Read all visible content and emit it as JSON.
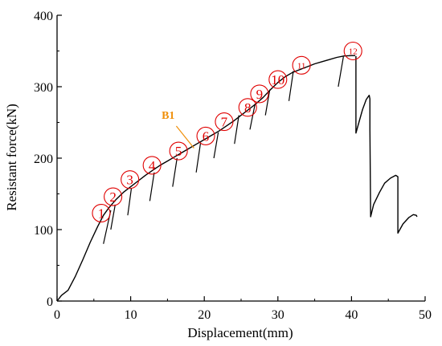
{
  "chart_data": {
    "type": "line",
    "xlabel": "Displacement(mm)",
    "ylabel": "Resistant force(kN)",
    "xlim": [
      0,
      50
    ],
    "ylim": [
      0,
      400
    ],
    "x_ticks": [
      "0",
      "10",
      "20",
      "30",
      "40",
      "50"
    ],
    "y_ticks": [
      "0",
      "100",
      "200",
      "300",
      "400"
    ],
    "grid": false,
    "series": [
      {
        "color": "#000000",
        "segments": [
          [
            [
              0,
              0
            ],
            [
              0.6,
              8
            ],
            [
              1.5,
              15
            ],
            [
              2.5,
              35
            ],
            [
              3.5,
              58
            ],
            [
              4.5,
              82
            ],
            [
              5.5,
              104
            ],
            [
              6.3,
              120
            ],
            [
              7,
              130
            ],
            [
              8,
              142
            ],
            [
              9,
              152
            ],
            [
              10,
              160
            ],
            [
              11,
              168
            ],
            [
              12,
              176
            ],
            [
              13,
              183
            ],
            [
              14,
              190
            ],
            [
              15,
              196
            ],
            [
              16,
              202
            ],
            [
              17,
              208
            ],
            [
              18,
              214
            ],
            [
              19,
              220
            ],
            [
              20,
              226
            ],
            [
              21,
              232
            ],
            [
              22,
              238
            ],
            [
              23,
              245
            ],
            [
              24,
              252
            ],
            [
              25,
              260
            ],
            [
              26,
              268
            ],
            [
              27,
              276
            ],
            [
              28,
              285
            ],
            [
              29,
              296
            ],
            [
              30,
              306
            ],
            [
              31,
              314
            ],
            [
              32,
              320
            ],
            [
              33,
              324
            ],
            [
              34,
              328
            ],
            [
              35,
              332
            ],
            [
              36,
              335
            ],
            [
              37,
              338
            ],
            [
              38,
              341
            ],
            [
              39,
              343
            ],
            [
              40,
              343.5
            ],
            [
              40.5,
              343.5
            ]
          ],
          [
            [
              40.6,
              343
            ],
            [
              40.6,
              235
            ],
            [
              41,
              250
            ],
            [
              41.5,
              268
            ],
            [
              42,
              282
            ],
            [
              42.4,
              288
            ],
            [
              42.5,
              283
            ],
            [
              42.5,
              240
            ],
            [
              42.6,
              118
            ],
            [
              43,
              135
            ],
            [
              43.8,
              152
            ],
            [
              44.5,
              165
            ],
            [
              45.3,
              172
            ],
            [
              46,
              176
            ],
            [
              46.3,
              174
            ],
            [
              46.3,
              95
            ],
            [
              47,
              108
            ],
            [
              47.8,
              117
            ],
            [
              48.4,
              121
            ],
            [
              48.8,
              120
            ],
            [
              48.9,
              118
            ]
          ]
        ]
      }
    ],
    "crack_ticks": [
      [
        [
          6.3,
          80
        ],
        [
          7.3,
          127
        ]
      ],
      [
        [
          7.3,
          100
        ],
        [
          7.9,
          135
        ]
      ],
      [
        [
          9.6,
          120
        ],
        [
          10.1,
          158
        ]
      ],
      [
        [
          12.6,
          140
        ],
        [
          13.2,
          180
        ]
      ],
      [
        [
          15.7,
          160
        ],
        [
          16.3,
          200
        ]
      ],
      [
        [
          18.9,
          180
        ],
        [
          19.5,
          222
        ]
      ],
      [
        [
          21.3,
          200
        ],
        [
          21.9,
          236
        ]
      ],
      [
        [
          24.1,
          220
        ],
        [
          24.7,
          260
        ]
      ],
      [
        [
          26.2,
          240
        ],
        [
          26.9,
          276
        ]
      ],
      [
        [
          28.3,
          260
        ],
        [
          28.9,
          296
        ]
      ],
      [
        [
          31.5,
          280
        ],
        [
          32.1,
          322
        ]
      ],
      [
        [
          38.2,
          300
        ],
        [
          38.9,
          342
        ]
      ]
    ],
    "markers": [
      {
        "label": "1",
        "x": 6.0,
        "y": 123
      },
      {
        "label": "2",
        "x": 7.6,
        "y": 146
      },
      {
        "label": "3",
        "x": 9.9,
        "y": 170
      },
      {
        "label": "4",
        "x": 12.9,
        "y": 190
      },
      {
        "label": "5",
        "x": 16.5,
        "y": 210
      },
      {
        "label": "6",
        "x": 20.2,
        "y": 231
      },
      {
        "label": "7",
        "x": 22.7,
        "y": 251
      },
      {
        "label": "8",
        "x": 25.9,
        "y": 271
      },
      {
        "label": "9",
        "x": 27.5,
        "y": 290
      },
      {
        "label": "10",
        "x": 30.0,
        "y": 310
      },
      {
        "label": "11",
        "x": 33.2,
        "y": 330
      },
      {
        "label": "12",
        "x": 40.2,
        "y": 350
      }
    ],
    "callout": {
      "text": "B1",
      "color": "#f0900a",
      "text_x": 14.2,
      "text_y": 255,
      "from": [
        16.2,
        245
      ],
      "to": [
        18.6,
        214
      ]
    }
  }
}
